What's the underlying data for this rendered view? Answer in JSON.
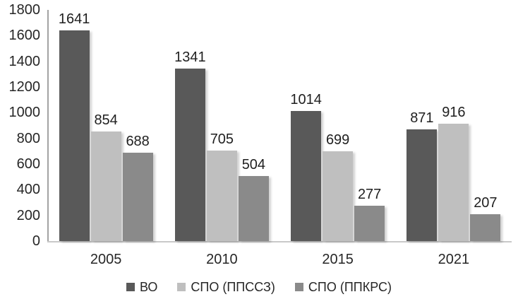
{
  "chart_data": {
    "type": "bar",
    "categories": [
      "2005",
      "2010",
      "2015",
      "2021"
    ],
    "series": [
      {
        "name": "ВО",
        "color": "#595959",
        "values": [
          1641,
          1341,
          1014,
          871
        ]
      },
      {
        "name": "СПО (ППССЗ)",
        "color": "#bfbfbf",
        "values": [
          854,
          705,
          699,
          916
        ]
      },
      {
        "name": "СПО (ППКРС)",
        "color": "#8a8a8a",
        "values": [
          688,
          504,
          277,
          207
        ]
      }
    ],
    "title": "",
    "xlabel": "",
    "ylabel": "",
    "ylim": [
      0,
      1800
    ],
    "ytick_step": 200,
    "ytick_labels": [
      "0",
      "200",
      "400",
      "600",
      "800",
      "1000",
      "1200",
      "1400",
      "1600",
      "1800"
    ],
    "grid": false,
    "legend_position": "bottom",
    "data_labels": true
  },
  "colors": {
    "background": "#ffffff",
    "y_axis_line": "#a3a3a3",
    "x_axis_line": "#c9c9c9",
    "text": "#262626"
  }
}
